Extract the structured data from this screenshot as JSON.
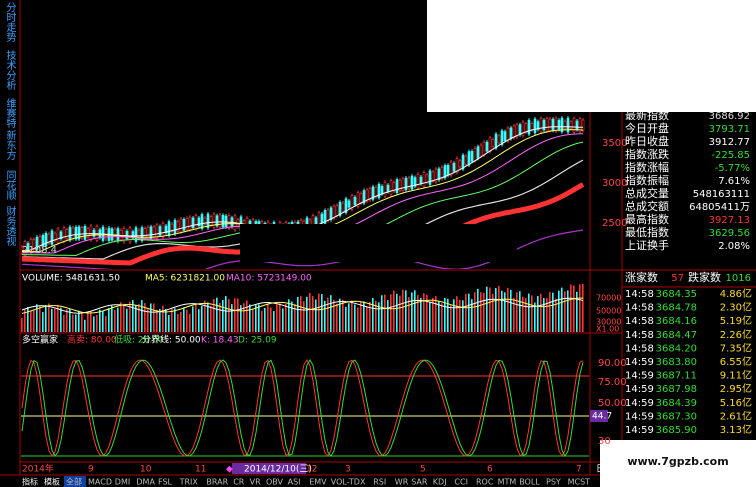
{
  "sidebar_tabs": [
    "分时走势",
    "技术分析",
    "维赛特",
    "新东方",
    "同花顺",
    "财务透视"
  ],
  "price_pane": {
    "low_label": "2108.4",
    "axis": [
      "3500",
      "3000",
      "2500"
    ]
  },
  "volume_pane": {
    "header": [
      "VOLUME: 5481631.50",
      "MA5: 6231821.00",
      "MA10: 5723149.00"
    ],
    "axis": [
      "70000",
      "50000",
      "30000",
      "X1.00"
    ]
  },
  "kdj_pane": {
    "name": "多空赢家",
    "header": [
      "高卖: 80.00",
      "低吸: 20.00",
      "分界线: 50.00",
      "K: 18.43",
      "D: 25.09"
    ],
    "axis": [
      "90.00",
      "75.00",
      "50.00",
      "30"
    ],
    "marker": "44.7"
  },
  "date_bar": {
    "labels": [
      "2014年",
      "9",
      "10",
      "11",
      "12",
      "3",
      "5",
      "6",
      "7"
    ],
    "cursor": "2014/12/10(三)",
    "period": "日线"
  },
  "tabs": [
    "指标",
    "模板",
    "全部",
    "MACD",
    "DMI",
    "DMA",
    "FSL",
    "TRIX",
    "BRAR",
    "CR",
    "VR",
    "OBV",
    "ASI",
    "EMV",
    "VOL-TDX",
    "RSI",
    "WR",
    "SAR",
    "KDJ",
    "CCI",
    "ROC",
    "MTM",
    "BOLL",
    "PSY",
    "MCST"
  ],
  "quote": [
    {
      "label": "最新指数",
      "value": "3686.92",
      "color": "#dddddd"
    },
    {
      "label": "今日开盘",
      "value": "3793.71",
      "color": "#33dd33"
    },
    {
      "label": "昨日收盘",
      "value": "3912.77",
      "color": "#ffffff"
    },
    {
      "label": "指数涨跌",
      "value": "-225.85",
      "color": "#33dd33"
    },
    {
      "label": "指数涨幅",
      "value": "-5.77%",
      "color": "#33dd33"
    },
    {
      "label": "指数振幅",
      "value": "7.61%",
      "color": "#ffffff"
    },
    {
      "label": "总成交量",
      "value": "548163111",
      "color": "#ffffff"
    },
    {
      "label": "总成交额",
      "value": "64805411万",
      "color": "#ffffff"
    },
    {
      "label": "最高指数",
      "value": "3927.13",
      "color": "#ff3333"
    },
    {
      "label": "最低指数",
      "value": "3629.56",
      "color": "#33dd33"
    },
    {
      "label": "上证换手",
      "value": "2.08%",
      "color": "#ffffff"
    }
  ],
  "breadth": {
    "up_label": "涨家数",
    "up": "57",
    "down_label": "跌家数",
    "down": "1016"
  },
  "trades": [
    [
      "14:58",
      "3684.35",
      "4.86亿"
    ],
    [
      "14:58",
      "3684.78",
      "2.30亿"
    ],
    [
      "14:58",
      "3684.16",
      "5.19亿"
    ],
    [
      "14:58",
      "3684.47",
      "2.26亿"
    ],
    [
      "14:58",
      "3684.20",
      "7.35亿"
    ],
    [
      "14:59",
      "3683.80",
      "6.55亿"
    ],
    [
      "14:59",
      "3687.11",
      "9.11亿"
    ],
    [
      "14:59",
      "3687.98",
      "2.95亿"
    ],
    [
      "14:59",
      "3684.39",
      "5.16亿"
    ],
    [
      "14:59",
      "3687.30",
      "2.61亿"
    ],
    [
      "14:59",
      "3685.90",
      "3.13亿"
    ]
  ],
  "watermark": "www.7gpzb.com"
}
